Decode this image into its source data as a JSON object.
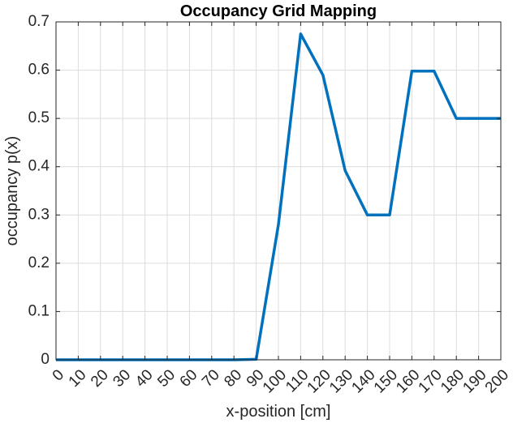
{
  "chart_data": {
    "type": "line",
    "title": "Occupancy Grid Mapping",
    "xlabel": "x-position [cm]",
    "ylabel": "occupancy p(x)",
    "xlim": [
      0,
      200
    ],
    "ylim": [
      0,
      0.7
    ],
    "grid": true,
    "x_ticks": [
      0,
      10,
      20,
      30,
      40,
      50,
      60,
      70,
      80,
      90,
      100,
      110,
      120,
      130,
      140,
      150,
      160,
      170,
      180,
      190,
      200
    ],
    "x_tick_labels": [
      "0",
      "10",
      "20",
      "30",
      "40",
      "50",
      "60",
      "70",
      "80",
      "90",
      "100",
      "110",
      "120",
      "130",
      "140",
      "150",
      "160",
      "170",
      "180",
      "190",
      "200"
    ],
    "y_ticks": [
      0,
      0.1,
      0.2,
      0.3,
      0.4,
      0.5,
      0.6,
      0.7
    ],
    "y_tick_labels": [
      "0",
      "0.1",
      "0.2",
      "0.3",
      "0.4",
      "0.5",
      "0.6",
      "0.7"
    ],
    "series": [
      {
        "color": "#0072BD",
        "x": [
          0,
          10,
          20,
          30,
          40,
          50,
          60,
          70,
          80,
          90,
          100,
          110,
          120,
          130,
          140,
          150,
          160,
          170,
          180,
          190,
          200
        ],
        "y": [
          0,
          0,
          0,
          0,
          0,
          0,
          0,
          0,
          0,
          0.001,
          0.28,
          0.675,
          0.59,
          0.392,
          0.3,
          0.3,
          0.598,
          0.598,
          0.5,
          0.5,
          0.5
        ]
      }
    ]
  }
}
